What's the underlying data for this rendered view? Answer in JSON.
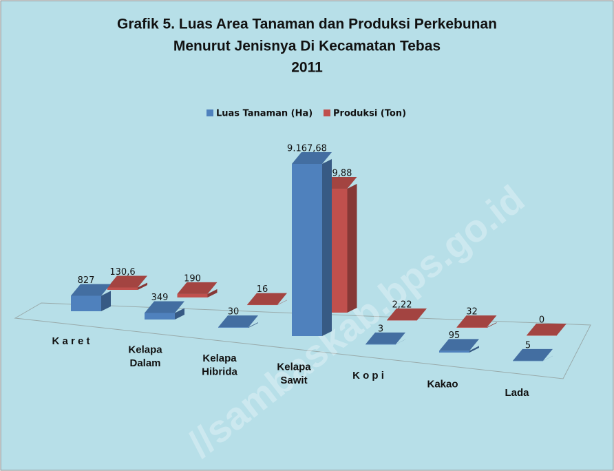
{
  "chart_data": {
    "type": "bar",
    "title": [
      "Grafik 5. Luas Area Tanaman dan Produksi Perkebunan",
      "Menurut Jenisnya Di Kecamatan Tebas",
      "2011"
    ],
    "watermark": "//sambaskab.bps.go.id",
    "categories": [
      "K a r e t",
      "Kelapa Dalam",
      "Kelapa Hibrida",
      "Kelapa Sawit",
      "K o p i",
      "Kakao",
      "Lada"
    ],
    "series": [
      {
        "name": "Luas Tanaman (Ha)",
        "color": "#4f81bd",
        "values": [
          827,
          349,
          30,
          9167.68,
          3,
          95,
          5
        ],
        "value_labels": [
          "827",
          "349",
          "30",
          "9.167,68",
          "3",
          "95",
          "5"
        ]
      },
      {
        "name": "Produksi (Ton)",
        "color": "#c0504d",
        "values": [
          130.6,
          190,
          16,
          6599.88,
          2.22,
          32,
          0
        ],
        "value_labels": [
          "130,6",
          "190",
          "16",
          "6.599,88",
          "2,22",
          "32",
          "0"
        ]
      }
    ]
  }
}
